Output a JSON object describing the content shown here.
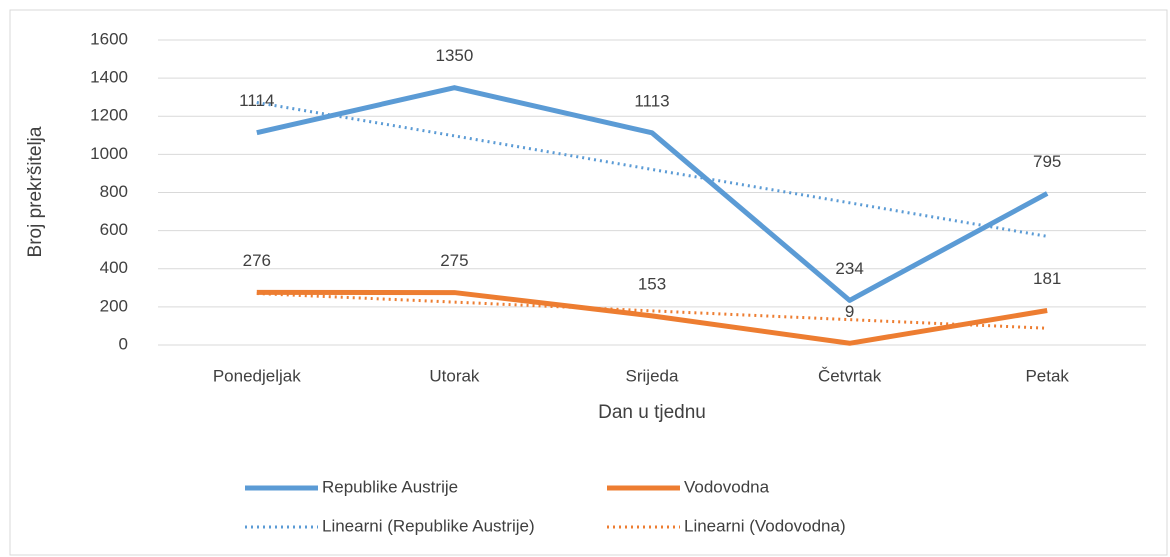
{
  "chart_data": {
    "type": "line",
    "categories": [
      "Ponedjeljak",
      "Utorak",
      "Srijeda",
      "Četvrtak",
      "Petak"
    ],
    "series": [
      {
        "name": "Republike Austrije",
        "color": "#5b9bd5",
        "values": [
          1114,
          1350,
          1113,
          234,
          795
        ],
        "labels": true
      },
      {
        "name": "Vodovodna",
        "color": "#ed7d31",
        "values": [
          276,
          275,
          153,
          9,
          181
        ],
        "labels": true
      },
      {
        "name": "Linearni (Republike Austrije)",
        "color": "#5b9bd5",
        "values": [
          1272,
          1097,
          921,
          746,
          570
        ],
        "dotted": true
      },
      {
        "name": "Linearni (Vodovodna)",
        "color": "#ed7d31",
        "values": [
          270,
          225,
          179,
          133,
          88
        ],
        "dotted": true
      }
    ],
    "xlabel": "Dan u tjednu",
    "ylabel": "Broj prekršitelja",
    "ylim": [
      0,
      1600
    ],
    "yticks": [
      0,
      200,
      400,
      600,
      800,
      1000,
      1200,
      1400,
      1600
    ],
    "grid": true,
    "legend": "bottom"
  }
}
